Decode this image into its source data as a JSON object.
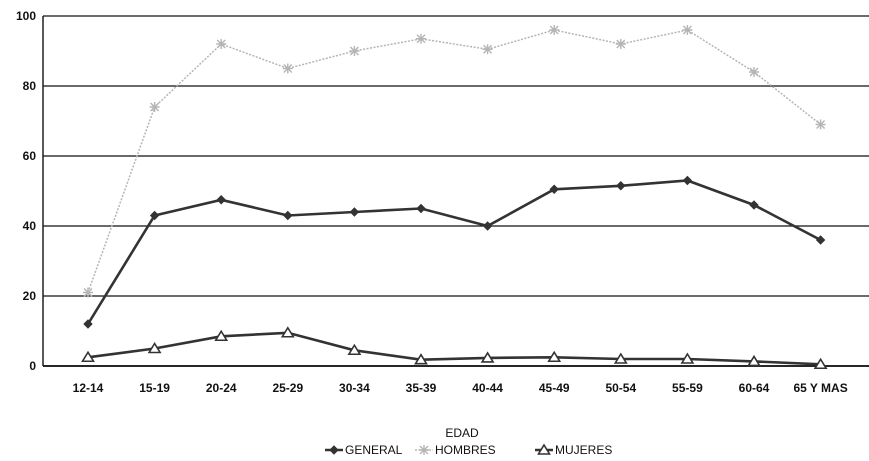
{
  "chart_data": {
    "type": "line",
    "categories": [
      "12-14",
      "15-19",
      "20-24",
      "25-29",
      "30-34",
      "35-39",
      "40-44",
      "45-49",
      "50-54",
      "55-59",
      "60-64",
      "65 Y MAS"
    ],
    "series": [
      {
        "name": "GENERAL",
        "values": [
          12,
          43,
          47.5,
          43,
          44,
          45,
          40,
          50.5,
          51.5,
          53,
          46,
          36
        ],
        "color": "#333333",
        "marker": "diamond"
      },
      {
        "name": "HOMBRES",
        "values": [
          21,
          74,
          92,
          85,
          90,
          93.5,
          90.5,
          96,
          92,
          96,
          84,
          69
        ],
        "color": "#b5b5b5",
        "marker": "star"
      },
      {
        "name": "MUJERES",
        "values": [
          2.5,
          5,
          8.5,
          9.5,
          4.5,
          1.8,
          2.3,
          2.5,
          2,
          2,
          1.3,
          0.5
        ],
        "color": "#333333",
        "marker": "triangle"
      }
    ],
    "y_ticks": [
      "0",
      "20",
      "40",
      "60",
      "80",
      "100"
    ],
    "ylim": [
      0,
      100
    ],
    "xlabel": "EDAD",
    "ylabel": "",
    "grid": true,
    "legend_position": "bottom"
  }
}
